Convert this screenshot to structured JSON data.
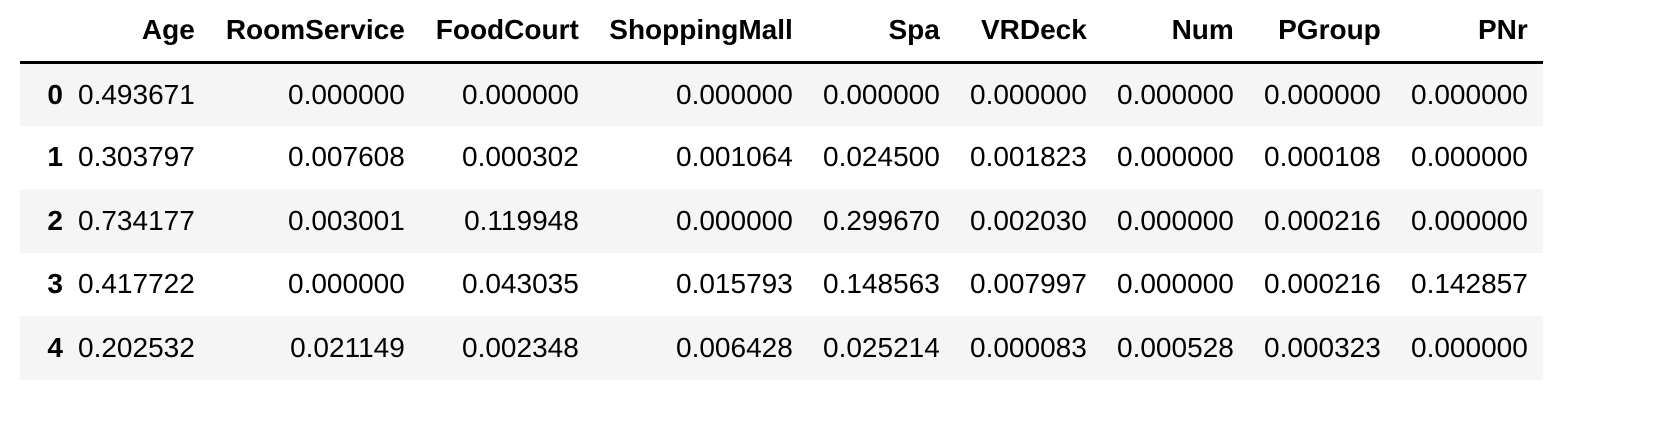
{
  "table": {
    "index_header": "",
    "columns": [
      "Age",
      "RoomService",
      "FoodCourt",
      "ShoppingMall",
      "Spa",
      "VRDeck",
      "Num",
      "PGroup",
      "PNr"
    ],
    "rows": [
      {
        "index": "0",
        "values": [
          "0.493671",
          "0.000000",
          "0.000000",
          "0.000000",
          "0.000000",
          "0.000000",
          "0.000000",
          "0.000000",
          "0.000000"
        ]
      },
      {
        "index": "1",
        "values": [
          "0.303797",
          "0.007608",
          "0.000302",
          "0.001064",
          "0.024500",
          "0.001823",
          "0.000000",
          "0.000108",
          "0.000000"
        ]
      },
      {
        "index": "2",
        "values": [
          "0.734177",
          "0.003001",
          "0.119948",
          "0.000000",
          "0.299670",
          "0.002030",
          "0.000000",
          "0.000216",
          "0.000000"
        ]
      },
      {
        "index": "3",
        "values": [
          "0.417722",
          "0.000000",
          "0.043035",
          "0.015793",
          "0.148563",
          "0.007997",
          "0.000000",
          "0.000216",
          "0.142857"
        ]
      },
      {
        "index": "4",
        "values": [
          "0.202532",
          "0.021149",
          "0.002348",
          "0.006428",
          "0.025214",
          "0.000083",
          "0.000528",
          "0.000323",
          "0.000000"
        ]
      }
    ]
  },
  "colors": {
    "text": "#000000",
    "stripe": "#f5f5f5",
    "background": "#ffffff",
    "header_rule": "#000000"
  }
}
